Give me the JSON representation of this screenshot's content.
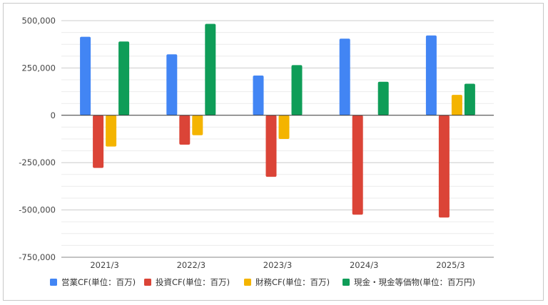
{
  "chart_data": {
    "type": "bar",
    "categories": [
      "2021/3",
      "2022/3",
      "2023/3",
      "2024/3",
      "2025/3"
    ],
    "series": [
      {
        "name": "営業CF(単位：百万)",
        "color": "#4285F4",
        "values": [
          415000,
          322000,
          210000,
          405000,
          422000
        ]
      },
      {
        "name": "投資CF(単位：百万)",
        "color": "#DB4437",
        "values": [
          -278000,
          -155000,
          -325000,
          -525000,
          -540000
        ]
      },
      {
        "name": "財務CF(単位：百万)",
        "color": "#F4B400",
        "values": [
          -165000,
          -105000,
          -125000,
          0,
          108000
        ]
      },
      {
        "name": "現金・現金等価物(単位：百万円)",
        "color": "#0F9D58",
        "values": [
          390000,
          483000,
          265000,
          177000,
          167000
        ]
      }
    ],
    "ylim": [
      -750000,
      500000
    ],
    "yticks": [
      500000,
      250000,
      0,
      -250000,
      -500000,
      -750000
    ],
    "ytick_labels": [
      "500,000",
      "250,000",
      "0",
      "-250,000",
      "-500,000",
      "-750,000"
    ],
    "grid": true,
    "legend_position": "bottom"
  }
}
